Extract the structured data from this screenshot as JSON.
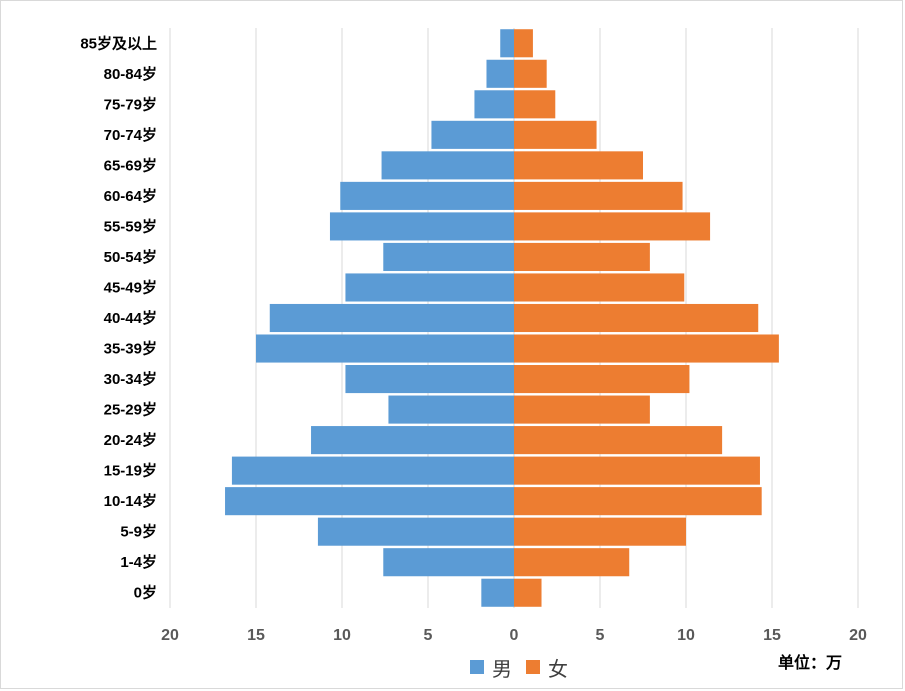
{
  "chart_data": {
    "type": "bar",
    "orientation": "horizontal",
    "subtype": "population-pyramid",
    "categories": [
      "0岁",
      "1-4岁",
      "5-9岁",
      "10-14岁",
      "15-19岁",
      "20-24岁",
      "25-29岁",
      "30-34岁",
      "35-39岁",
      "40-44岁",
      "45-49岁",
      "50-54岁",
      "55-59岁",
      "60-64岁",
      "65-69岁",
      "70-74岁",
      "75-79岁",
      "80-84岁",
      "85岁及以上"
    ],
    "series": [
      {
        "name": "男",
        "color": "#5b9bd5",
        "side": "left",
        "values": [
          1.9,
          7.6,
          11.4,
          16.8,
          16.4,
          11.8,
          7.3,
          9.8,
          15.0,
          14.2,
          9.8,
          7.6,
          10.7,
          10.1,
          7.7,
          4.8,
          2.3,
          1.6,
          0.8
        ]
      },
      {
        "name": "女",
        "color": "#ed7d31",
        "side": "right",
        "values": [
          1.6,
          6.7,
          10.0,
          14.4,
          14.3,
          12.1,
          7.9,
          10.2,
          15.4,
          14.2,
          9.9,
          7.9,
          11.4,
          9.8,
          7.5,
          4.8,
          2.4,
          1.9,
          1.1
        ]
      }
    ],
    "x_ticks": [
      "20",
      "15",
      "10",
      "5",
      "0",
      "5",
      "10",
      "15",
      "20"
    ],
    "xlim": [
      -20,
      20
    ],
    "grid": "vertical",
    "legend": "bottom-center",
    "unit": "单位：万"
  }
}
